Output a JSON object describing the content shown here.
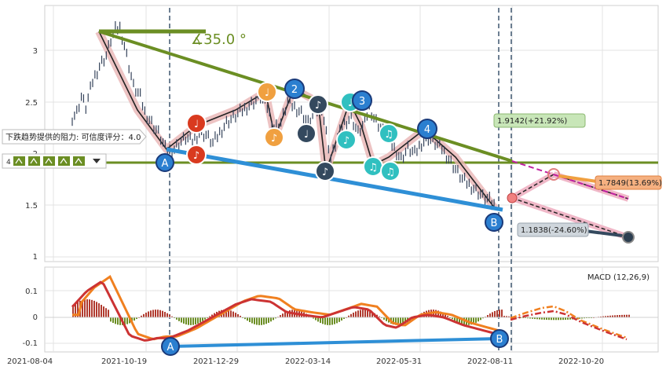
{
  "colors": {
    "price": "#34425a",
    "resistance": "#6b8e23",
    "support": "#2e8fd6",
    "macd_line": "#cc3333",
    "signal_line": "#f08020",
    "hist_pos": "#b03a2e",
    "hist_neg": "#6b8e23",
    "grid": "#d9d9d9",
    "marker_red": "#d93a1f",
    "marker_orange": "#f0a040",
    "marker_blue": "#2b7fd0",
    "marker_teal": "#30c0c0",
    "marker_dark": "#34495e"
  },
  "annotations": {
    "angle_text": "∡35.0 °",
    "resistance_label": "下跌趋势提供的阻力: 可信度评分：4.0",
    "callout_up": "1.9142(+21.92%)",
    "callout_mid": "1.7849(13.69%)",
    "callout_down": "1.1838(-24.60%)",
    "macd_label": "MACD (12,26,9)",
    "point_a": "A",
    "point_b": "B"
  },
  "chart_data": [
    {
      "type": "line",
      "series": [
        {
          "values": [
            [
              0,
              2.35
            ],
            [
              2,
              2.4
            ],
            [
              4,
              2.55
            ],
            [
              6,
              2.45
            ],
            [
              9,
              2.7
            ],
            [
              12,
              2.85
            ],
            [
              15,
              2.95
            ],
            [
              17,
              3.1
            ],
            [
              19,
              3.2
            ],
            [
              21,
              3.22
            ],
            [
              23,
              3.05
            ],
            [
              25,
              2.85
            ],
            [
              27,
              2.65
            ],
            [
              30,
              2.55
            ],
            [
              32,
              2.4
            ],
            [
              35,
              2.3
            ],
            [
              38,
              2.2
            ],
            [
              41,
              2.05
            ],
            [
              44,
              2.02
            ],
            [
              47,
              2.1
            ],
            [
              50,
              2.15
            ],
            [
              53,
              2.12
            ],
            [
              56,
              2.2
            ],
            [
              59,
              2.18
            ],
            [
              62,
              2.1
            ],
            [
              65,
              2.2
            ],
            [
              68,
              2.3
            ],
            [
              71,
              2.35
            ],
            [
              74,
              2.4
            ],
            [
              77,
              2.45
            ],
            [
              80,
              2.5
            ],
            [
              83,
              2.55
            ],
            [
              86,
              2.45
            ],
            [
              89,
              2.25
            ],
            [
              92,
              2.3
            ],
            [
              95,
              2.5
            ],
            [
              98,
              2.45
            ],
            [
              101,
              2.4
            ],
            [
              104,
              2.3
            ],
            [
              107,
              2.4
            ],
            [
              110,
              2.45
            ],
            [
              112,
              2.2
            ],
            [
              114,
              1.95
            ],
            [
              117,
              2.15
            ],
            [
              120,
              2.3
            ],
            [
              123,
              2.35
            ],
            [
              126,
              2.2
            ],
            [
              129,
              2.3
            ],
            [
              131,
              2.45
            ],
            [
              133,
              2.35
            ],
            [
              136,
              2.25
            ],
            [
              139,
              2.15
            ],
            [
              142,
              2.05
            ],
            [
              145,
              1.95
            ],
            [
              148,
              2.05
            ],
            [
              151,
              2.0
            ],
            [
              154,
              2.1
            ],
            [
              157,
              2.15
            ],
            [
              160,
              2.1
            ],
            [
              163,
              2.05
            ],
            [
              166,
              1.95
            ],
            [
              169,
              1.85
            ],
            [
              172,
              1.75
            ],
            [
              175,
              1.7
            ],
            [
              178,
              1.65
            ],
            [
              181,
              1.58
            ],
            [
              184,
              1.55
            ],
            [
              187,
              1.48
            ]
          ]
        }
      ],
      "xlabel": "",
      "ylabel": "",
      "x_ticks": [
        "2021-08-04",
        "2021-10-19",
        "2021-12-29",
        "2022-03-14",
        "2022-05-31",
        "2022-08-11",
        "2022-10-20"
      ],
      "y_ticks": [
        1.0,
        1.5,
        2.0,
        2.5,
        3.0
      ],
      "ylim": [
        0.95,
        3.3
      ]
    },
    {
      "type": "bar",
      "series_label": "MACD (12,26,9)",
      "y_ticks": [
        -0.1,
        0.0,
        0.1
      ],
      "ylim": [
        -0.13,
        0.18
      ]
    }
  ],
  "markers": [
    {
      "label": "♩",
      "style": "red"
    },
    {
      "label": "♪",
      "style": "red"
    },
    {
      "label": "♩",
      "style": "orange"
    },
    {
      "label": "♪",
      "style": "orange"
    },
    {
      "label": "2",
      "style": "blue"
    },
    {
      "label": "♪",
      "style": "dark"
    },
    {
      "label": "♩",
      "style": "dark"
    },
    {
      "label": "♪",
      "style": "dark"
    },
    {
      "label": "♩",
      "style": "teal"
    },
    {
      "label": "3",
      "style": "blue"
    },
    {
      "label": "♫",
      "style": "teal"
    },
    {
      "label": "♫",
      "style": "teal"
    },
    {
      "label": "♫",
      "style": "teal"
    },
    {
      "label": "♪",
      "style": "teal"
    },
    {
      "label": "4",
      "style": "blue"
    }
  ],
  "icons": [
    "chart-pattern-icon",
    "chart-pattern-icon",
    "chart-pattern-icon",
    "chart-pattern-icon",
    "chart-pattern-icon",
    "dropdown-icon"
  ]
}
